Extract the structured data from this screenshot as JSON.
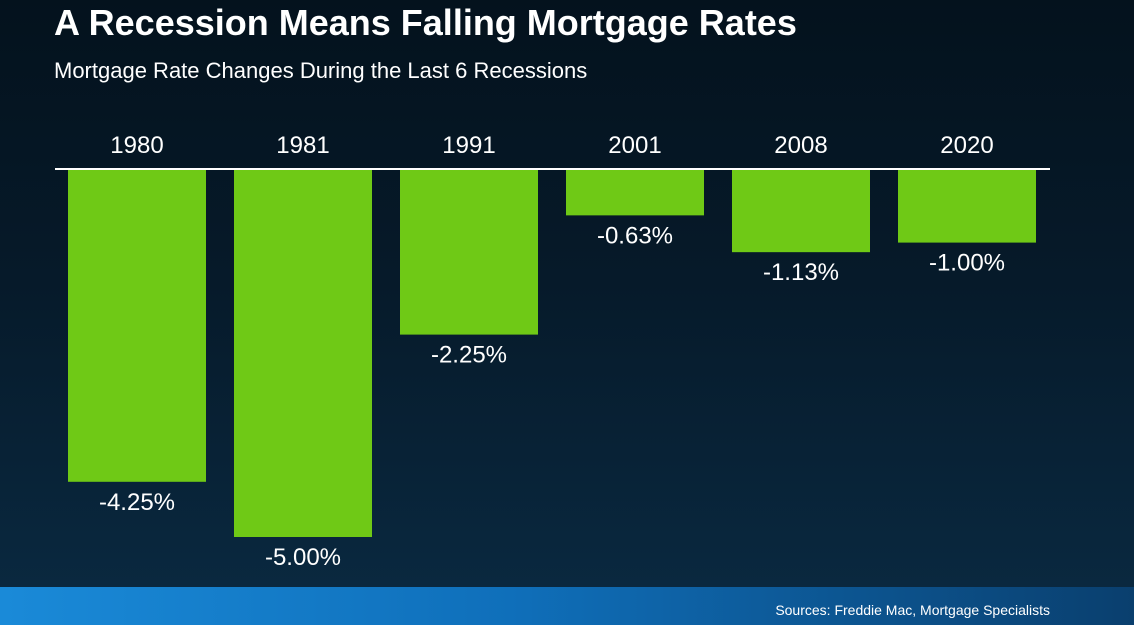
{
  "chart_data": {
    "type": "bar",
    "title": "A Recession Means Falling Mortgage Rates",
    "subtitle": "Mortgage Rate Changes During the Last 6 Recessions",
    "categories": [
      "1980",
      "1981",
      "1991",
      "2001",
      "2008",
      "2020"
    ],
    "values": [
      -4.25,
      -5.0,
      -2.25,
      -0.63,
      -1.13,
      -1.0
    ],
    "value_labels": [
      "-4.25%",
      "-5.00%",
      "-2.25%",
      "-0.63%",
      "-1.13%",
      "-1.00%"
    ],
    "ylim": [
      -5.0,
      0
    ],
    "xlabel": "",
    "ylabel": "",
    "grid": false,
    "legend": "none",
    "bar_color": "#6fc916",
    "axis_color": "#ffffff"
  },
  "footer": {
    "source": "Sources: Freddie Mac, Mortgage Specialists"
  }
}
